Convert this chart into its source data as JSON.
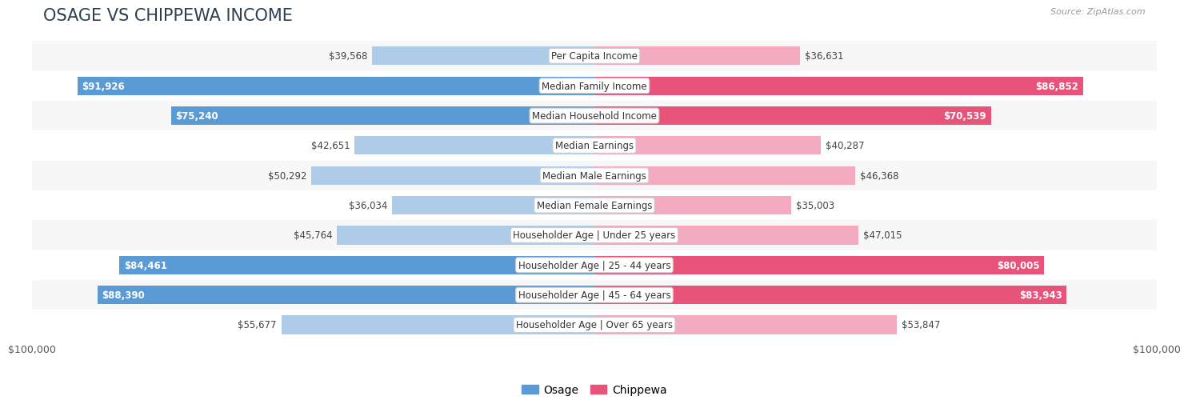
{
  "title": "OSAGE VS CHIPPEWA INCOME",
  "source": "Source: ZipAtlas.com",
  "categories": [
    "Per Capita Income",
    "Median Family Income",
    "Median Household Income",
    "Median Earnings",
    "Median Male Earnings",
    "Median Female Earnings",
    "Householder Age | Under 25 years",
    "Householder Age | 25 - 44 years",
    "Householder Age | 45 - 64 years",
    "Householder Age | Over 65 years"
  ],
  "osage_values": [
    39568,
    91926,
    75240,
    42651,
    50292,
    36034,
    45764,
    84461,
    88390,
    55677
  ],
  "chippewa_values": [
    36631,
    86852,
    70539,
    40287,
    46368,
    35003,
    47015,
    80005,
    83943,
    53847
  ],
  "max_value": 100000,
  "osage_color_full": "#5B9BD5",
  "osage_color_light": "#AECCE8",
  "chippewa_color_full": "#E8537A",
  "chippewa_color_light": "#F4AABF",
  "label_threshold": 70000,
  "bg_row_even": "#F7F7F7",
  "bg_row_odd": "#FFFFFF",
  "bar_height": 0.62,
  "title_fontsize": 15,
  "label_fontsize": 8.5,
  "category_fontsize": 8.5,
  "axis_label_fontsize": 9,
  "legend_fontsize": 10
}
